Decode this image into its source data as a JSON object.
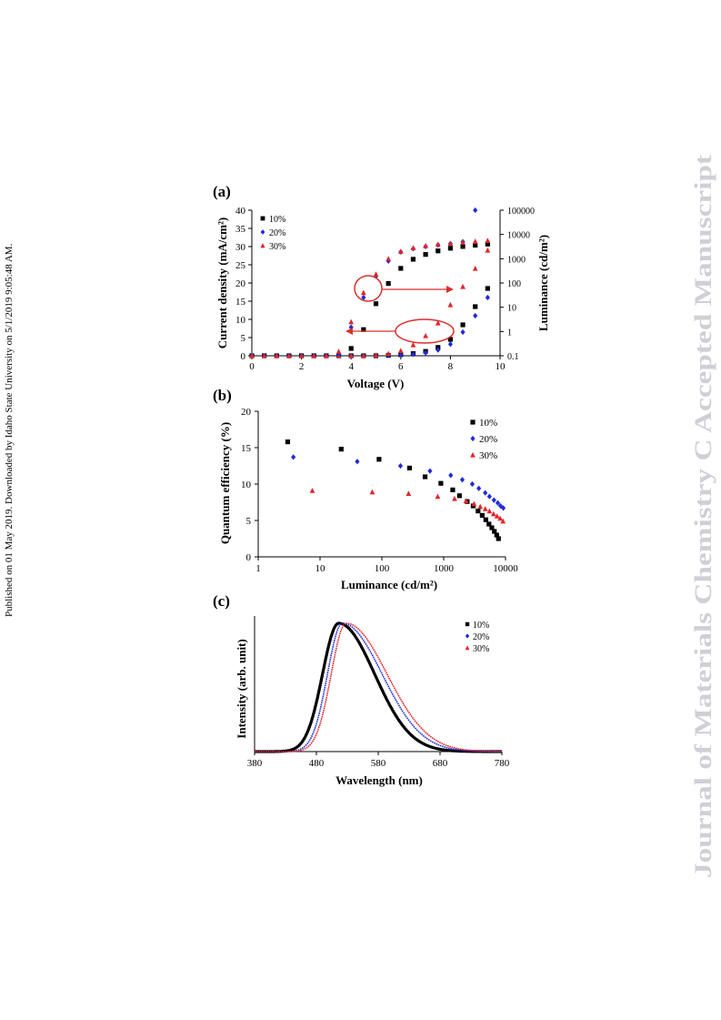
{
  "side_note": "Published on 01 May 2019. Downloaded by Idaho State University on 5/1/2019 9:05:48 AM.",
  "watermark": "Journal of Materials Chemistry C Accepted Manuscript",
  "colors": {
    "s10": "#000000",
    "s20": "#1f2bd6",
    "s30": "#e0262b",
    "arrow": "#d9302c",
    "watermark": "#cfcfd6"
  },
  "panels": {
    "a": "(a)",
    "b": "(b)",
    "c": "(c)"
  },
  "legend": [
    "10%",
    "20%",
    "30%"
  ],
  "chart_data": [
    {
      "id": "a",
      "type": "scatter",
      "xlabel": "Voltage (V)",
      "ylabel": "Current density (mA/cm²)",
      "y2label": "Luminance (cd/m²)",
      "xlim": [
        0,
        10
      ],
      "ylim": [
        0,
        40
      ],
      "y2lim": [
        0.1,
        100000
      ],
      "y2scale": "log",
      "xticks": [
        0,
        2,
        4,
        6,
        8,
        10
      ],
      "yticks": [
        0,
        5,
        10,
        15,
        20,
        25,
        30,
        35,
        40
      ],
      "y2ticks": [
        0.1,
        1,
        10,
        100,
        1000,
        10000,
        100000
      ],
      "y2ticklabels": [
        "0.1",
        "1",
        "10",
        "100",
        "1000",
        "10000",
        "100000"
      ],
      "legend_position": "top-left",
      "current_density": [
        {
          "name": "10%",
          "x": [
            0,
            0.5,
            1,
            1.5,
            2,
            2.5,
            3,
            3.5,
            4,
            4.5,
            5,
            5.5,
            6,
            6.5,
            7,
            7.5,
            8,
            8.5,
            9,
            9.5
          ],
          "y": [
            0,
            0,
            0,
            0,
            0,
            0,
            0,
            0,
            0,
            0,
            0,
            0.1,
            0.3,
            0.6,
            1.2,
            2.3,
            4.5,
            8.5,
            13.5,
            18.5
          ]
        },
        {
          "name": "20%",
          "x": [
            0,
            0.5,
            1,
            1.5,
            2,
            2.5,
            3,
            3.5,
            4,
            4.5,
            5,
            5.5,
            6,
            6.5,
            7,
            7.5,
            8,
            8.5,
            9,
            9.5
          ],
          "y": [
            0,
            0,
            0,
            0,
            0,
            0,
            0,
            0,
            0,
            0,
            0,
            0.1,
            0.2,
            0.4,
            0.8,
            1.6,
            3.2,
            6.5,
            11,
            16
          ]
        },
        {
          "name": "30%",
          "x": [
            0,
            0.5,
            1,
            1.5,
            2,
            2.5,
            3,
            3.5,
            4,
            4.5,
            5,
            5.5,
            6,
            6.5,
            7,
            7.5,
            8,
            8.5,
            9,
            9.5
          ],
          "y": [
            0,
            0,
            0,
            0,
            0,
            0,
            0,
            0,
            0,
            0,
            0.2,
            0.6,
            1.4,
            3.0,
            5.5,
            9.0,
            14,
            19,
            24,
            29
          ]
        }
      ],
      "luminance": [
        {
          "name": "10%",
          "x": [
            4,
            4.5,
            5,
            5.5,
            6,
            6.5,
            7,
            7.5,
            8,
            8.5,
            9,
            9.5
          ],
          "y": [
            0.2,
            1.2,
            14,
            95,
            400,
            950,
            1500,
            2100,
            2700,
            3200,
            3600,
            4000
          ]
        },
        {
          "name": "20%",
          "x": [
            3.5,
            4,
            4.5,
            5,
            5.5,
            6,
            6.5,
            7,
            7.5,
            8,
            8.5,
            9
          ],
          "y": [
            0.12,
            1.5,
            25,
            190,
            800,
            1900,
            2600,
            3200,
            3700,
            4200,
            5000,
            100000
          ]
        },
        {
          "name": "30%",
          "x": [
            3.5,
            4,
            4.5,
            5,
            5.5,
            6,
            6.5,
            7,
            7.5,
            8,
            8.5,
            9,
            9.5
          ],
          "y": [
            0.15,
            2.5,
            40,
            230,
            1000,
            2000,
            2800,
            3400,
            3900,
            4300,
            4700,
            5200,
            5600
          ]
        }
      ],
      "annotations": [
        "ellipse around luminance points near 4.5 V with arrow pointing right",
        "ellipse around current points near 7 V with arrow pointing left"
      ]
    },
    {
      "id": "b",
      "type": "scatter",
      "xlabel": "Luminance (cd/m²)",
      "ylabel": "Quantum efficiency (%)",
      "xscale": "log",
      "xlim": [
        1,
        10000
      ],
      "ylim": [
        0,
        20
      ],
      "xticks": [
        1,
        10,
        100,
        1000,
        10000
      ],
      "yticks": [
        0,
        5,
        10,
        15,
        20
      ],
      "legend_position": "top-right",
      "series": [
        {
          "name": "10%",
          "x": [
            3,
            22,
            90,
            280,
            500,
            900,
            1400,
            1800,
            2400,
            3000,
            3600,
            4200,
            4800,
            5400,
            6000,
            6600,
            7200,
            7700
          ],
          "y": [
            15.8,
            14.8,
            13.4,
            12.2,
            11.0,
            10.1,
            9.2,
            8.4,
            7.6,
            7.0,
            6.3,
            5.7,
            5.1,
            4.5,
            4.0,
            3.5,
            3.0,
            2.5
          ]
        },
        {
          "name": "20%",
          "x": [
            3.7,
            40,
            200,
            600,
            1300,
            2000,
            2900,
            3700,
            4700,
            5500,
            6500,
            7500,
            8300,
            9200
          ],
          "y": [
            13.7,
            13.1,
            12.5,
            11.8,
            11.2,
            10.6,
            10.0,
            9.4,
            8.8,
            8.3,
            7.8,
            7.4,
            7.0,
            6.7
          ]
        },
        {
          "name": "30%",
          "x": [
            7.5,
            70,
            270,
            800,
            1500,
            2300,
            3100,
            3900,
            4700,
            5500,
            6400,
            7300,
            8200,
            9100
          ],
          "y": [
            9.1,
            8.9,
            8.7,
            8.3,
            8.0,
            7.7,
            7.3,
            6.9,
            6.6,
            6.3,
            5.9,
            5.6,
            5.3,
            4.9
          ]
        }
      ]
    },
    {
      "id": "c",
      "type": "line",
      "xlabel": "Wavelength (nm)",
      "ylabel": "Intensity (arb. unit)",
      "xlim": [
        380,
        780
      ],
      "ylim": [
        0,
        1.0
      ],
      "xticks": [
        380,
        480,
        580,
        680,
        780
      ],
      "legend_position": "top-right",
      "series": [
        {
          "name": "10%",
          "peak": 516,
          "sigma_left": 26,
          "sigma_right": 58
        },
        {
          "name": "20%",
          "peak": 522,
          "sigma_left": 24,
          "sigma_right": 64
        },
        {
          "name": "30%",
          "peak": 528,
          "sigma_left": 24,
          "sigma_right": 66
        }
      ]
    }
  ]
}
